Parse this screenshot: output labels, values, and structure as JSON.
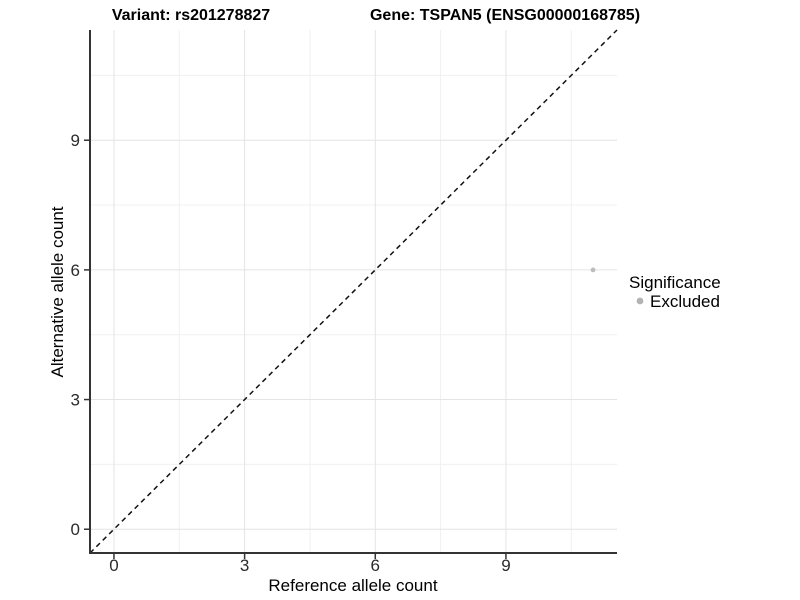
{
  "chart_data": {
    "type": "scatter",
    "titles": {
      "left": "Variant: rs201278827",
      "right": "Gene: TSPAN5 (ENSG00000168785)"
    },
    "xlabel": "Reference allele count",
    "ylabel": "Alternative allele count",
    "xlim": [
      -0.55,
      11.55
    ],
    "ylim": [
      -0.55,
      11.55
    ],
    "x_ticks": [
      0,
      3,
      6,
      9
    ],
    "y_ticks": [
      0,
      3,
      6,
      9
    ],
    "x_minor_ticks": [
      1.5,
      4.5,
      7.5,
      10.5
    ],
    "y_minor_ticks": [
      1.5,
      4.5,
      7.5,
      10.5
    ],
    "grid": true,
    "identity_line": {
      "slope": 1,
      "intercept": 0,
      "style": "dashed",
      "color": "#111111"
    },
    "series": [
      {
        "name": "Excluded",
        "color": "#bdbdbd",
        "points": [
          {
            "x": 11,
            "y": 6
          }
        ]
      }
    ],
    "legend": {
      "title": "Significance",
      "position": "right",
      "items": [
        {
          "label": "Excluded",
          "color": "#b3b3b3"
        }
      ]
    },
    "colors": {
      "background": "#ffffff",
      "grid_major": "#e4e4e4",
      "grid_minor": "#f0f0f0",
      "axis_line": "#333333",
      "tick_mark": "#333333"
    }
  }
}
